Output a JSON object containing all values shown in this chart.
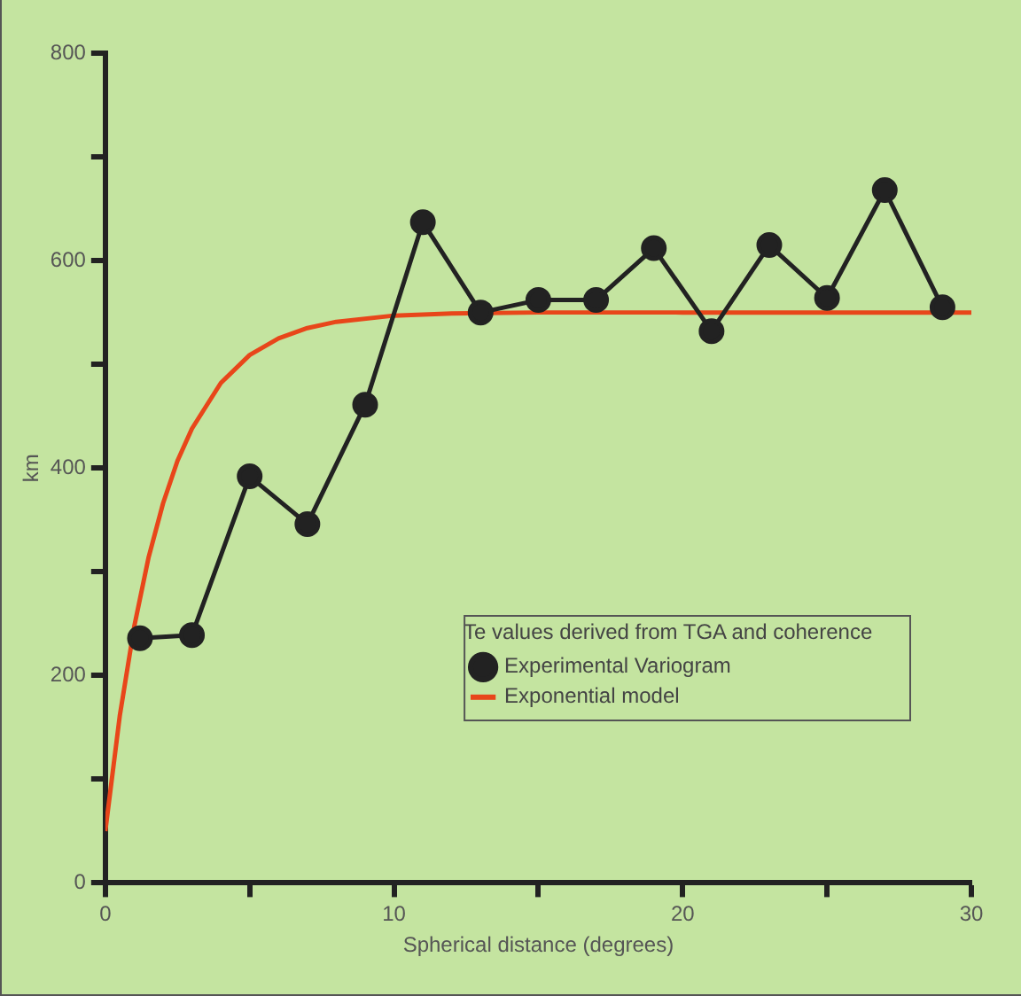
{
  "chart_data": {
    "type": "line",
    "xlabel": "Spherical distance (degrees)",
    "ylabel": "km",
    "legend_title": "Te values derived from TGA and coherence",
    "xlim": [
      0,
      30
    ],
    "xticks": [
      0,
      {
        "value": 5,
        "label": null
      },
      10,
      {
        "value": 15,
        "label": null
      },
      20,
      {
        "value": 25,
        "label": null
      },
      30
    ],
    "ylim": [
      0,
      800
    ],
    "yticks": [
      0,
      {
        "value": 100,
        "label": null
      },
      200,
      {
        "value": 300,
        "label": null
      },
      400,
      {
        "value": 500,
        "label": null
      },
      600,
      {
        "value": 700,
        "label": null
      },
      800
    ],
    "grid": false,
    "legend": "right",
    "series": [
      {
        "name": "Experimental Variogram",
        "color": "#222222",
        "marker": "circle",
        "x": [
          1.2,
          3,
          5,
          7,
          9,
          11,
          13,
          15,
          17,
          19,
          21,
          23,
          25,
          27,
          29
        ],
        "values": [
          236,
          239,
          392,
          346,
          461,
          637,
          550,
          562,
          562,
          612,
          532,
          615,
          564,
          668,
          555
        ]
      },
      {
        "name": "Exponential model",
        "color": "#e8461a",
        "marker": "none",
        "x": [
          0,
          0.5,
          1,
          1.5,
          2,
          2.5,
          3,
          4,
          5,
          6,
          7,
          8,
          10,
          12,
          15,
          20,
          25,
          30
        ],
        "values": [
          50,
          161,
          247,
          314,
          366,
          407,
          438,
          482,
          509,
          525,
          535,
          541,
          547,
          549,
          550,
          550,
          550,
          550
        ]
      }
    ]
  }
}
